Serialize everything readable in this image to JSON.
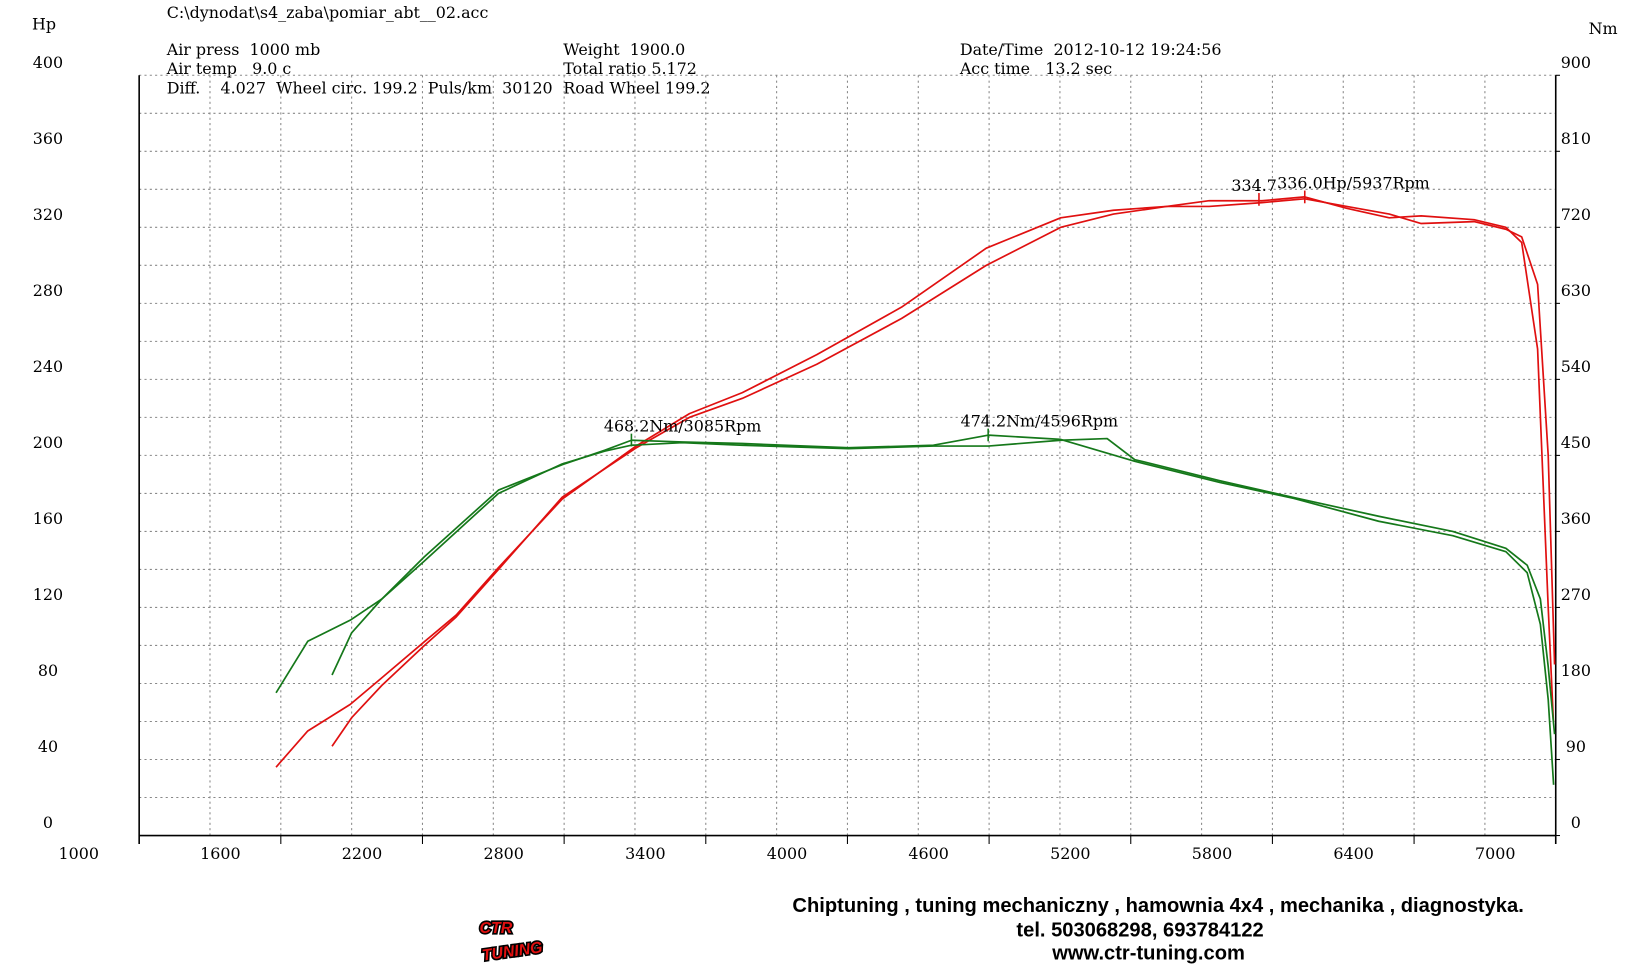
{
  "header": {
    "file": "C:\\dynodat\\s4_zaba\\pomiar_abt__02.acc",
    "air_press": "Air press  1000 mb",
    "air_temp": "Air temp   9.0 c",
    "diff": "Diff.    4.027  Wheel circ. 199.2  Puls/km  30120",
    "weight": "Weight  1900.0",
    "total_ratio": "Total ratio 5.172",
    "road_wheel": "Road Wheel 199.2",
    "datetime": "Date/Time  2012-10-12 19:24:56",
    "acc_time": "Acc time   13.2 sec"
  },
  "chart_data": {
    "type": "line",
    "ylabel": "Hp",
    "y2label": "Nm",
    "xlim": [
      1000,
      7000
    ],
    "xticks": [
      1000,
      1600,
      2200,
      2800,
      3400,
      4000,
      4600,
      5200,
      5800,
      6400,
      7000
    ],
    "ylim": [
      0,
      400
    ],
    "yticks": [
      0,
      40,
      80,
      120,
      160,
      200,
      240,
      280,
      320,
      360,
      400
    ],
    "y2lim": [
      0,
      900
    ],
    "y2ticks": [
      0,
      90,
      180,
      270,
      360,
      450,
      540,
      630,
      720,
      810,
      900
    ],
    "grid": true,
    "series": [
      {
        "color": "#e01010",
        "axis": "y",
        "x": [
          1580,
          1714,
          1894,
          2028,
          2208,
          2343,
          2522,
          2792,
          3106,
          3331,
          3555,
          3870,
          4229,
          4588,
          4903,
          5127,
          5352,
          5532,
          5756,
          5937,
          6115,
          6295,
          6430,
          6654,
          6789,
          6856,
          6923,
          6968,
          6990
        ],
        "values": [
          36,
          55,
          69,
          83,
          102,
          116,
          141,
          177,
          205,
          222,
          233,
          253,
          278,
          309,
          325,
          329,
          331,
          334,
          334,
          336,
          330,
          325,
          326,
          324,
          320,
          312,
          256,
          120,
          60
        ]
      },
      {
        "color": "#e01010",
        "axis": "y",
        "x": [
          1817,
          1900,
          2028,
          2208,
          2343,
          2522,
          2792,
          3106,
          3331,
          3555,
          3870,
          4229,
          4588,
          4903,
          5127,
          5352,
          5532,
          5756,
          5937,
          6115,
          6295,
          6430,
          6654,
          6789,
          6856,
          6923,
          6968,
          6995
        ],
        "values": [
          47,
          62,
          79,
          100,
          115,
          140,
          178,
          204,
          220,
          230,
          248,
          272,
          300,
          320,
          327,
          331,
          331,
          333,
          335,
          331,
          327,
          322,
          323,
          319,
          315,
          290,
          200,
          90
        ]
      },
      {
        "color": "#15781a",
        "axis": "y2",
        "x": [
          1580,
          1714,
          1894,
          2028,
          2208,
          2522,
          2792,
          2971,
          3085,
          3300,
          3555,
          4004,
          4364,
          4596,
          4903,
          5217,
          5577,
          5891,
          6250,
          6564,
          6789,
          6879,
          6935,
          6968,
          6991
        ],
        "values": [
          169,
          230,
          255,
          280,
          330,
          409,
          439,
          456,
          468,
          466,
          464,
          459,
          462,
          474,
          469,
          443,
          418,
          399,
          372,
          355,
          336,
          311,
          250,
          161,
          60
        ]
      },
      {
        "color": "#15781a",
        "axis": "y2",
        "x": [
          1817,
          1900,
          2028,
          2208,
          2522,
          2792,
          2971,
          3085,
          3300,
          3555,
          4004,
          4364,
          4596,
          4903,
          5100,
          5217,
          5577,
          5891,
          6250,
          6564,
          6789,
          6879,
          6935,
          6968,
          6995
        ],
        "values": [
          190,
          240,
          280,
          325,
          405,
          440,
          455,
          462,
          465,
          462,
          458,
          461,
          461,
          468,
          470,
          445,
          420,
          400,
          378,
          360,
          340,
          320,
          280,
          200,
          120
        ]
      }
    ],
    "annotations": [
      {
        "text": "334.7",
        "x": 5743,
        "y": 334.7,
        "axis": "y",
        "color": "#e01010"
      },
      {
        "text": "336.0Hp/5937Rpm",
        "x": 5937,
        "y": 336.0,
        "axis": "y",
        "color": "#e01010"
      },
      {
        "text": "468.2Nm/3085Rpm",
        "x": 3085,
        "y": 468.2,
        "axis": "y2",
        "color": "#15781a"
      },
      {
        "text": "474.2Nm/4596Rpm",
        "x": 4596,
        "y": 474.2,
        "axis": "y2",
        "color": "#15781a"
      }
    ]
  },
  "footer": {
    "logo": "CTR",
    "logo_sub": "TUNING",
    "line1": "Chiptuning , tuning mechaniczny , hamownia 4x4 , mechanika , diagnostyka.",
    "line2": "tel. 503068298, 693784122",
    "line3": "www.ctr-tuning.com"
  }
}
